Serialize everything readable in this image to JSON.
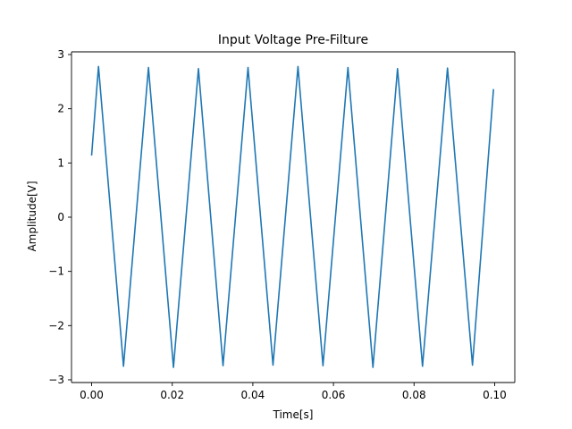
{
  "chart_data": {
    "type": "line",
    "title": "Input Voltage Pre-Filture",
    "xlabel": "Time[s]",
    "ylabel": "Amplitude[V]",
    "xlim": [
      -0.005,
      0.105
    ],
    "ylim": [
      -3.05,
      3.05
    ],
    "xticks": [
      0.0,
      0.02,
      0.04,
      0.06,
      0.08,
      0.1
    ],
    "xtick_labels": [
      "0.00",
      "0.02",
      "0.04",
      "0.06",
      "0.08",
      "0.10"
    ],
    "yticks": [
      -3,
      -2,
      -1,
      0,
      1,
      2,
      3
    ],
    "ytick_labels": [
      "−3",
      "−2",
      "−1",
      "0",
      "1",
      "2",
      "3"
    ],
    "grid": false,
    "series": [
      {
        "color": "#1f77b4",
        "x": [
          0.0,
          0.0017,
          0.0079,
          0.0141,
          0.0203,
          0.0265,
          0.0326,
          0.0388,
          0.045,
          0.0512,
          0.0574,
          0.0636,
          0.0698,
          0.0759,
          0.0821,
          0.0883,
          0.0945,
          0.0997
        ],
        "y": [
          1.15,
          2.78,
          -2.75,
          2.76,
          -2.77,
          2.74,
          -2.74,
          2.76,
          -2.73,
          2.78,
          -2.74,
          2.76,
          -2.77,
          2.74,
          -2.75,
          2.75,
          -2.73,
          2.35
        ]
      }
    ]
  }
}
